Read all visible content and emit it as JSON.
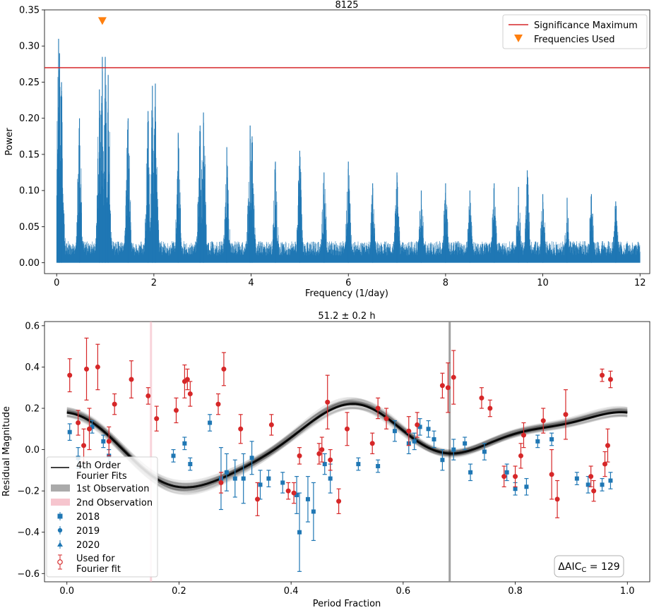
{
  "chart_data": [
    {
      "type": "line",
      "title": "8125",
      "xlabel": "Frequency (1/day)",
      "ylabel": "Power",
      "xlim": [
        -0.25,
        12.2
      ],
      "ylim": [
        -0.015,
        0.35
      ],
      "xticks": [
        0,
        2,
        4,
        6,
        8,
        10,
        12
      ],
      "yticks": [
        0.0,
        0.05,
        0.1,
        0.15,
        0.2,
        0.25,
        0.3,
        0.35
      ],
      "ytick_labels": [
        "0.00",
        "0.05",
        "0.10",
        "0.15",
        "0.20",
        "0.25",
        "0.30",
        "0.35"
      ],
      "significance_maximum": 0.27,
      "frequencies_used": [
        {
          "x": 0.94,
          "y": 0.335
        }
      ],
      "peaks": [
        {
          "f": 0.04,
          "p": 0.31
        },
        {
          "f": 0.06,
          "p": 0.29
        },
        {
          "f": 0.1,
          "p": 0.25
        },
        {
          "f": 0.47,
          "p": 0.2
        },
        {
          "f": 0.88,
          "p": 0.24
        },
        {
          "f": 0.94,
          "p": 0.285
        },
        {
          "f": 1.0,
          "p": 0.285
        },
        {
          "f": 1.06,
          "p": 0.26
        },
        {
          "f": 1.47,
          "p": 0.2
        },
        {
          "f": 1.88,
          "p": 0.21
        },
        {
          "f": 1.97,
          "p": 0.245
        },
        {
          "f": 2.03,
          "p": 0.248
        },
        {
          "f": 2.5,
          "p": 0.18
        },
        {
          "f": 2.95,
          "p": 0.19
        },
        {
          "f": 3.02,
          "p": 0.208
        },
        {
          "f": 3.5,
          "p": 0.16
        },
        {
          "f": 3.98,
          "p": 0.19
        },
        {
          "f": 4.02,
          "p": 0.175
        },
        {
          "f": 4.5,
          "p": 0.14
        },
        {
          "f": 5.0,
          "p": 0.155
        },
        {
          "f": 5.5,
          "p": 0.125
        },
        {
          "f": 6.0,
          "p": 0.14
        },
        {
          "f": 6.5,
          "p": 0.11
        },
        {
          "f": 7.0,
          "p": 0.125
        },
        {
          "f": 7.5,
          "p": 0.1
        },
        {
          "f": 8.0,
          "p": 0.11
        },
        {
          "f": 8.5,
          "p": 0.1
        },
        {
          "f": 9.0,
          "p": 0.11
        },
        {
          "f": 9.5,
          "p": 0.105
        },
        {
          "f": 9.68,
          "p": 0.128
        },
        {
          "f": 10.0,
          "p": 0.095
        },
        {
          "f": 10.5,
          "p": 0.09
        },
        {
          "f": 11.0,
          "p": 0.095
        },
        {
          "f": 11.5,
          "p": 0.085
        }
      ],
      "legend": {
        "position": "top-right",
        "entries": [
          "Significance Maximum",
          "Frequencies Used"
        ]
      },
      "colors": {
        "series": "#1f77b4",
        "significance": "#d62728",
        "marker": "#ff7f0e"
      }
    },
    {
      "type": "scatter",
      "title": "51.2 ± 0.2 h",
      "xlabel": "Period Fraction",
      "ylabel": "Residual Magnitude",
      "xlim": [
        -0.04,
        1.04
      ],
      "ylim": [
        -0.64,
        0.62
      ],
      "xticks": [
        0.0,
        0.2,
        0.4,
        0.6,
        0.8,
        1.0
      ],
      "xtick_labels": [
        "0.0",
        "0.2",
        "0.4",
        "0.6",
        "0.8",
        "1.0"
      ],
      "yticks": [
        -0.6,
        -0.4,
        -0.2,
        0.0,
        0.2,
        0.4,
        0.6
      ],
      "ytick_labels": [
        "−0.6",
        "−0.4",
        "−0.2",
        "0.0",
        "0.2",
        "0.4",
        "0.6"
      ],
      "first_observation_x": 0.683,
      "second_observation_x": 0.15,
      "fourier_order": 4,
      "fourier_coefficients": {
        "a0": 0.045,
        "cos": [
          -0.01,
          0.134,
          -0.01,
          0.02
        ],
        "sin": [
          -0.086,
          -0.038,
          0.01,
          0.02
        ]
      },
      "series": [
        {
          "name": "2018",
          "marker": "square",
          "color": "#1f77b4",
          "points": [
            {
              "x": 0.005,
              "y": 0.085,
              "e": 0.04
            },
            {
              "x": 0.02,
              "y": -0.04,
              "e": 0.05
            },
            {
              "x": 0.045,
              "y": 0.11,
              "e": 0.03
            },
            {
              "x": 0.065,
              "y": 0.04,
              "e": 0.03
            },
            {
              "x": 0.075,
              "y": -0.03,
              "e": 0.03
            },
            {
              "x": 0.19,
              "y": -0.03,
              "e": 0.03
            },
            {
              "x": 0.21,
              "y": 0.03,
              "e": 0.03
            },
            {
              "x": 0.22,
              "y": -0.07,
              "e": 0.03
            },
            {
              "x": 0.255,
              "y": 0.13,
              "e": 0.04
            },
            {
              "x": 0.275,
              "y": -0.14,
              "e": 0.15
            },
            {
              "x": 0.285,
              "y": -0.11,
              "e": 0.09
            },
            {
              "x": 0.3,
              "y": -0.14,
              "e": 0.09
            },
            {
              "x": 0.315,
              "y": -0.14,
              "e": 0.12
            },
            {
              "x": 0.33,
              "y": -0.04,
              "e": 0.08
            },
            {
              "x": 0.345,
              "y": -0.17,
              "e": 0.07
            },
            {
              "x": 0.36,
              "y": -0.14,
              "e": 0.04
            },
            {
              "x": 0.385,
              "y": -0.16,
              "e": 0.05
            },
            {
              "x": 0.41,
              "y": -0.22,
              "e": 0.09
            },
            {
              "x": 0.415,
              "y": -0.4,
              "e": 0.19
            },
            {
              "x": 0.43,
              "y": -0.24,
              "e": 0.11
            },
            {
              "x": 0.44,
              "y": -0.3,
              "e": 0.14
            },
            {
              "x": 0.46,
              "y": -0.07,
              "e": 0.05
            },
            {
              "x": 0.47,
              "y": -0.14,
              "e": 0.07
            },
            {
              "x": 0.52,
              "y": -0.07,
              "e": 0.03
            },
            {
              "x": 0.555,
              "y": -0.08,
              "e": 0.03
            },
            {
              "x": 0.585,
              "y": 0.09,
              "e": 0.05
            },
            {
              "x": 0.61,
              "y": 0.03,
              "e": 0.05
            },
            {
              "x": 0.62,
              "y": 0.04,
              "e": 0.04
            },
            {
              "x": 0.63,
              "y": 0.11,
              "e": 0.04
            },
            {
              "x": 0.645,
              "y": 0.1,
              "e": 0.04
            },
            {
              "x": 0.655,
              "y": 0.05,
              "e": 0.04
            },
            {
              "x": 0.67,
              "y": -0.05,
              "e": 0.05
            },
            {
              "x": 0.69,
              "y": 0.0,
              "e": 0.05
            },
            {
              "x": 0.71,
              "y": 0.03,
              "e": 0.03
            },
            {
              "x": 0.72,
              "y": -0.11,
              "e": 0.04
            },
            {
              "x": 0.745,
              "y": -0.01,
              "e": 0.04
            },
            {
              "x": 0.785,
              "y": -0.11,
              "e": 0.04
            },
            {
              "x": 0.8,
              "y": -0.19,
              "e": 0.03
            },
            {
              "x": 0.82,
              "y": -0.18,
              "e": 0.04
            },
            {
              "x": 0.84,
              "y": 0.04,
              "e": 0.03
            },
            {
              "x": 0.865,
              "y": 0.05,
              "e": 0.03
            },
            {
              "x": 0.91,
              "y": -0.14,
              "e": 0.03
            },
            {
              "x": 0.93,
              "y": -0.17,
              "e": 0.04
            },
            {
              "x": 0.955,
              "y": -0.17,
              "e": 0.03
            },
            {
              "x": 0.97,
              "y": -0.15,
              "e": 0.04
            }
          ]
        },
        {
          "name": "2019",
          "marker": "circle",
          "color": "#1f77b4",
          "points": []
        },
        {
          "name": "2020",
          "marker": "triangle",
          "color": "#1f77b4",
          "points": []
        },
        {
          "name": "Used for\n Fourier fit",
          "marker": "open-circle",
          "color": "#d62728",
          "points": [
            {
              "x": 0.005,
              "y": 0.36,
              "e": 0.08
            },
            {
              "x": 0.02,
              "y": 0.13,
              "e": 0.06
            },
            {
              "x": 0.03,
              "y": 0.02,
              "e": 0.08
            },
            {
              "x": 0.035,
              "y": 0.39,
              "e": 0.15
            },
            {
              "x": 0.04,
              "y": 0.1,
              "e": 0.1
            },
            {
              "x": 0.055,
              "y": 0.4,
              "e": 0.11
            },
            {
              "x": 0.075,
              "y": 0.04,
              "e": 0.07
            },
            {
              "x": 0.085,
              "y": 0.22,
              "e": 0.05
            },
            {
              "x": 0.115,
              "y": 0.34,
              "e": 0.09
            },
            {
              "x": 0.145,
              "y": 0.26,
              "e": 0.04
            },
            {
              "x": 0.16,
              "y": 0.15,
              "e": 0.06
            },
            {
              "x": 0.195,
              "y": 0.19,
              "e": 0.06
            },
            {
              "x": 0.21,
              "y": 0.33,
              "e": 0.08
            },
            {
              "x": 0.215,
              "y": 0.34,
              "e": 0.05
            },
            {
              "x": 0.22,
              "y": 0.27,
              "e": 0.06
            },
            {
              "x": 0.27,
              "y": 0.22,
              "e": 0.05
            },
            {
              "x": 0.275,
              "y": -0.16,
              "e": 0.05
            },
            {
              "x": 0.28,
              "y": 0.39,
              "e": 0.08
            },
            {
              "x": 0.31,
              "y": 0.1,
              "e": 0.07
            },
            {
              "x": 0.34,
              "y": -0.24,
              "e": 0.08
            },
            {
              "x": 0.365,
              "y": 0.12,
              "e": 0.05
            },
            {
              "x": 0.395,
              "y": -0.2,
              "e": 0.04
            },
            {
              "x": 0.405,
              "y": -0.21,
              "e": 0.05
            },
            {
              "x": 0.415,
              "y": -0.03,
              "e": 0.04
            },
            {
              "x": 0.45,
              "y": -0.02,
              "e": 0.05
            },
            {
              "x": 0.455,
              "y": 0.0,
              "e": 0.06
            },
            {
              "x": 0.465,
              "y": 0.23,
              "e": 0.13
            },
            {
              "x": 0.47,
              "y": -0.05,
              "e": 0.05
            },
            {
              "x": 0.485,
              "y": -0.25,
              "e": 0.06
            },
            {
              "x": 0.5,
              "y": 0.1,
              "e": 0.08
            },
            {
              "x": 0.545,
              "y": 0.03,
              "e": 0.05
            },
            {
              "x": 0.555,
              "y": 0.2,
              "e": 0.05
            },
            {
              "x": 0.57,
              "y": 0.15,
              "e": 0.05
            },
            {
              "x": 0.61,
              "y": 0.09,
              "e": 0.07
            },
            {
              "x": 0.625,
              "y": 0.12,
              "e": 0.06
            },
            {
              "x": 0.67,
              "y": 0.31,
              "e": 0.06
            },
            {
              "x": 0.68,
              "y": 0.3,
              "e": 0.12
            },
            {
              "x": 0.69,
              "y": 0.35,
              "e": 0.13
            },
            {
              "x": 0.74,
              "y": 0.25,
              "e": 0.05
            },
            {
              "x": 0.755,
              "y": 0.2,
              "e": 0.04
            },
            {
              "x": 0.78,
              "y": -0.13,
              "e": 0.05
            },
            {
              "x": 0.8,
              "y": -0.13,
              "e": 0.05
            },
            {
              "x": 0.81,
              "y": -0.03,
              "e": 0.06
            },
            {
              "x": 0.815,
              "y": 0.07,
              "e": 0.06
            },
            {
              "x": 0.85,
              "y": 0.14,
              "e": 0.06
            },
            {
              "x": 0.865,
              "y": -0.12,
              "e": 0.12
            },
            {
              "x": 0.875,
              "y": -0.24,
              "e": 0.09
            },
            {
              "x": 0.89,
              "y": 0.17,
              "e": 0.12
            },
            {
              "x": 0.935,
              "y": -0.13,
              "e": 0.05
            },
            {
              "x": 0.94,
              "y": -0.2,
              "e": 0.05
            },
            {
              "x": 0.955,
              "y": 0.36,
              "e": 0.03
            },
            {
              "x": 0.96,
              "y": -0.07,
              "e": 0.06
            },
            {
              "x": 0.965,
              "y": 0.02,
              "e": 0.08
            },
            {
              "x": 0.97,
              "y": 0.34,
              "e": 0.04
            }
          ]
        }
      ],
      "legend": {
        "position": "lower-left",
        "entries": [
          "4th Order\n Fourier Fits",
          "1st Observation",
          "2nd Observation",
          "2018",
          "2019",
          "2020",
          "Used for\n Fourier fit"
        ]
      },
      "annotation": {
        "prefix": "ΔAIC",
        "subscript": "C",
        "suffix": " = 129",
        "position": "lower-right"
      },
      "colors": {
        "fit": "#000000",
        "first_observation": "#888888",
        "second_observation": "#f4b6c2"
      }
    }
  ]
}
